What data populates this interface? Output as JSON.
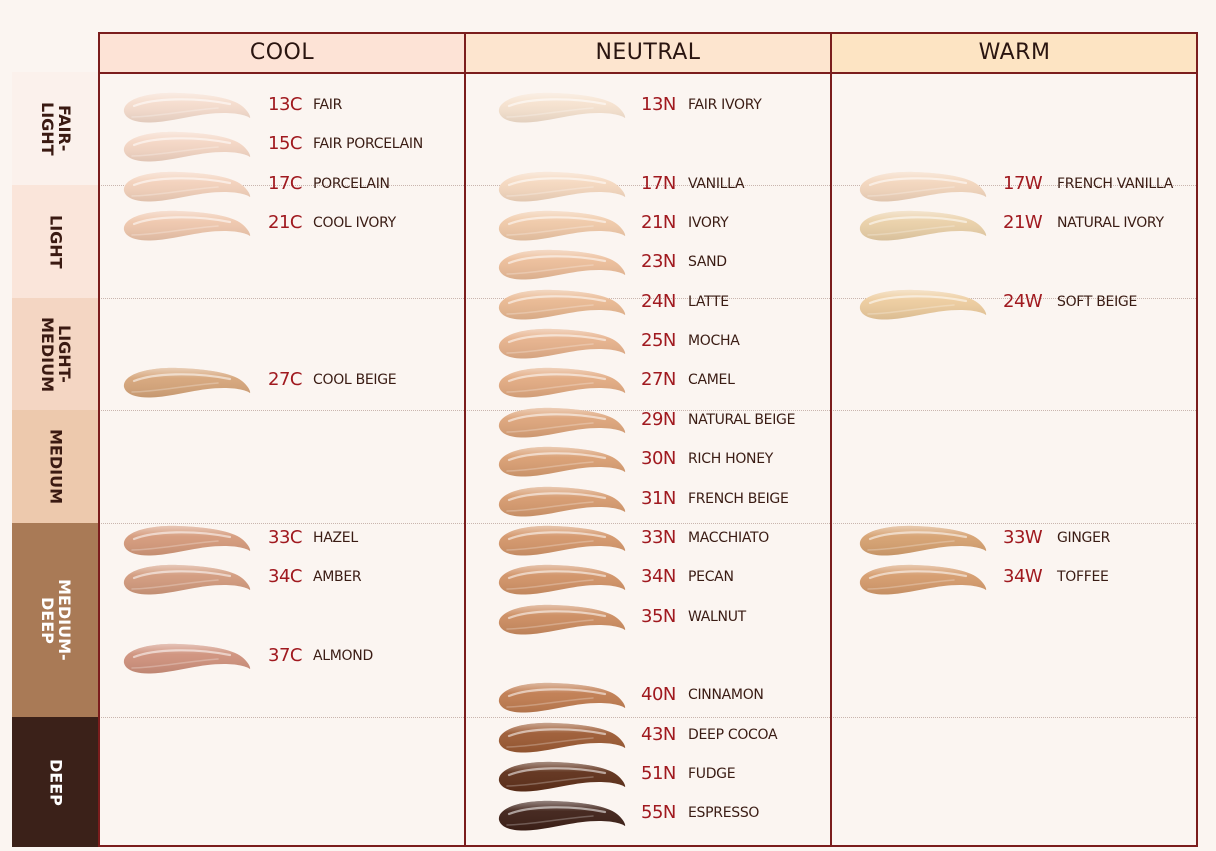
{
  "columns": [
    {
      "id": "cool",
      "label": "COOL",
      "bg": "#fde3d6"
    },
    {
      "id": "neutral",
      "label": "NEUTRAL",
      "bg": "#fde5cf"
    },
    {
      "id": "warm",
      "label": "WARM",
      "bg": "#fde4c3"
    }
  ],
  "bands": [
    {
      "label": "FAIR-\nLIGHT",
      "bg": "#fbf1ec",
      "text": "light"
    },
    {
      "label": "LIGHT",
      "bg": "#fae5da",
      "text": "light"
    },
    {
      "label": "LIGHT-\nMEDIUM",
      "bg": "#f4d6c3",
      "text": "light"
    },
    {
      "label": "MEDIUM",
      "bg": "#edc9ad",
      "text": "light"
    },
    {
      "label": "MEDIUM-\nDEEP",
      "bg": "#a97a56",
      "text": "dark"
    },
    {
      "label": "DEEP",
      "bg": "#3b2119",
      "text": "dark"
    }
  ],
  "shades": [
    {
      "code": "13C",
      "name": "FAIR",
      "column": "cool",
      "slot": 0,
      "color": "#f5dccd"
    },
    {
      "code": "15C",
      "name": "FAIR PORCELAIN",
      "column": "cool",
      "slot": 1,
      "color": "#f4d6c4"
    },
    {
      "code": "17C",
      "name": "PORCELAIN",
      "column": "cool",
      "slot": 2,
      "color": "#f3d1bb"
    },
    {
      "code": "21C",
      "name": "COOL IVORY",
      "column": "cool",
      "slot": 3,
      "color": "#efc7ad"
    },
    {
      "code": "27C",
      "name": "COOL BEIGE",
      "column": "cool",
      "slot": 7,
      "color": "#d6a57a"
    },
    {
      "code": "33C",
      "name": "HAZEL",
      "column": "cool",
      "slot": 11,
      "color": "#d59a7b"
    },
    {
      "code": "34C",
      "name": "AMBER",
      "column": "cool",
      "slot": 12,
      "color": "#d29a7d"
    },
    {
      "code": "37C",
      "name": "ALMOND",
      "column": "cool",
      "slot": 14,
      "color": "#cf917c"
    },
    {
      "code": "13N",
      "name": "FAIR IVORY",
      "column": "neutral",
      "slot": 0,
      "color": "#f6e2cf"
    },
    {
      "code": "17N",
      "name": "VANILLA",
      "column": "neutral",
      "slot": 2,
      "color": "#f5d8bf"
    },
    {
      "code": "21N",
      "name": "IVORY",
      "column": "neutral",
      "slot": 3,
      "color": "#f0c9a8"
    },
    {
      "code": "23N",
      "name": "SAND",
      "column": "neutral",
      "slot": 4,
      "color": "#ecbd99"
    },
    {
      "code": "24N",
      "name": "LATTE",
      "column": "neutral",
      "slot": 5,
      "color": "#e9b891"
    },
    {
      "code": "25N",
      "name": "MOCHA",
      "column": "neutral",
      "slot": 6,
      "color": "#e6b18b"
    },
    {
      "code": "27N",
      "name": "CAMEL",
      "column": "neutral",
      "slot": 7,
      "color": "#e2aa81"
    },
    {
      "code": "29N",
      "name": "NATURAL BEIGE",
      "column": "neutral",
      "slot": 8,
      "color": "#dda47a"
    },
    {
      "code": "30N",
      "name": "RICH HONEY",
      "column": "neutral",
      "slot": 9,
      "color": "#d99e72"
    },
    {
      "code": "31N",
      "name": "FRENCH BEIGE",
      "column": "neutral",
      "slot": 10,
      "color": "#d69a6e"
    },
    {
      "code": "33N",
      "name": "MACCHIATO",
      "column": "neutral",
      "slot": 11,
      "color": "#d4966a"
    },
    {
      "code": "34N",
      "name": "PECAN",
      "column": "neutral",
      "slot": 12,
      "color": "#d19266"
    },
    {
      "code": "35N",
      "name": "WALNUT",
      "column": "neutral",
      "slot": 13,
      "color": "#cc8c60"
    },
    {
      "code": "40N",
      "name": "CINNAMON",
      "column": "neutral",
      "slot": 15,
      "color": "#c07c50"
    },
    {
      "code": "43N",
      "name": "DEEP COCOA",
      "column": "neutral",
      "slot": 16,
      "color": "#9c5a33"
    },
    {
      "code": "51N",
      "name": "FUDGE",
      "column": "neutral",
      "slot": 17,
      "color": "#5e2f19"
    },
    {
      "code": "55N",
      "name": "ESPRESSO",
      "column": "neutral",
      "slot": 18,
      "color": "#3e2017"
    },
    {
      "code": "17W",
      "name": "FRENCH VANILLA",
      "column": "warm",
      "slot": 2,
      "color": "#f3d6bd"
    },
    {
      "code": "21W",
      "name": "NATURAL IVORY",
      "column": "warm",
      "slot": 3,
      "color": "#ead0a8"
    },
    {
      "code": "24W",
      "name": "SOFT BEIGE",
      "column": "warm",
      "slot": 5,
      "color": "#edcc9e"
    },
    {
      "code": "33W",
      "name": "GINGER",
      "column": "warm",
      "slot": 11,
      "color": "#d6a170"
    },
    {
      "code": "34W",
      "name": "TOFFEE",
      "column": "warm",
      "slot": 12,
      "color": "#d59b6c"
    }
  ]
}
